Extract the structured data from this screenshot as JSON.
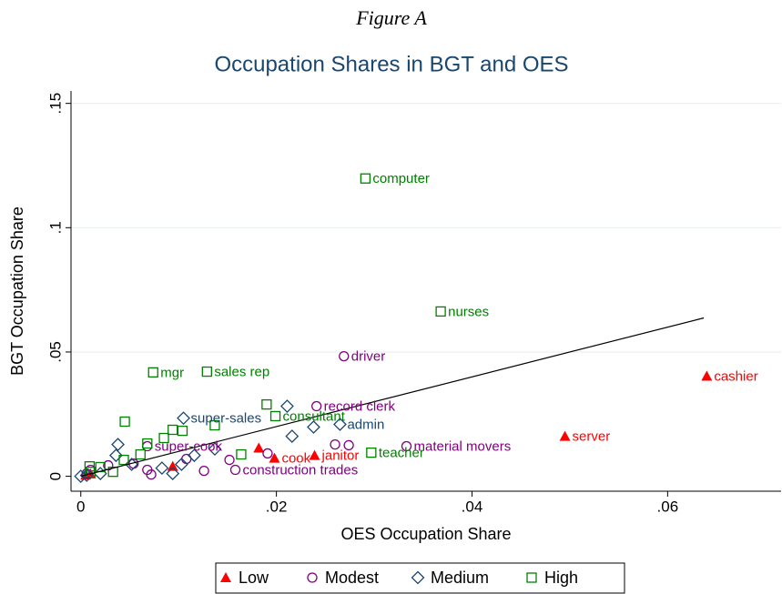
{
  "chart_data": {
    "type": "scatter",
    "figure_label": "Figure A",
    "title": "Occupation Shares in BGT and OES",
    "x_label": "OES Occupation Share",
    "y_label": "BGT Occupation Share",
    "xlim": [
      -0.001,
      0.0716
    ],
    "ylim": [
      -0.006,
      0.155
    ],
    "xticks": [
      0,
      {
        "value": 0.02,
        "label": ".02"
      },
      {
        "value": 0.04,
        "label": ".04"
      },
      {
        "value": 0.06,
        "label": ".06"
      }
    ],
    "yticks": [
      0,
      {
        "value": 0.05,
        "label": ".05"
      },
      {
        "value": 0.1,
        "label": ".1"
      },
      {
        "value": 0.15,
        "label": ".15"
      }
    ],
    "grid": true,
    "legend_position": "bottom",
    "fit_line": {
      "x": [
        0,
        0.0637
      ],
      "y": [
        0,
        0.0637
      ]
    },
    "series": [
      {
        "name": "Low",
        "color": "#ff0000",
        "marker": "triangle",
        "x": [
          0.064,
          0.0495,
          0.0198,
          0.0239,
          0.0182,
          0.0094,
          0.001,
          0.0005
        ],
        "values": [
          0.0403,
          0.0161,
          0.0073,
          0.0084,
          0.0114,
          0.004,
          0.001,
          0.0005
        ],
        "labels": [
          "cashier",
          "server",
          "cook",
          "janitor",
          null,
          null,
          null,
          null
        ]
      },
      {
        "name": "Modest",
        "color": "#800080",
        "marker": "circle",
        "x": [
          0.0269,
          0.0241,
          0.0333,
          0.0068,
          0.0158,
          0.026,
          0.0274,
          0.0191,
          0.0152,
          0.0126,
          0.0108,
          0.0054,
          0.0068,
          0.0072,
          0.0028,
          0.001,
          0.0006
        ],
        "values": [
          0.0483,
          0.0282,
          0.0121,
          0.0121,
          0.0026,
          0.0128,
          0.0125,
          0.0092,
          0.0066,
          0.0022,
          0.007,
          0.0051,
          0.0026,
          0.0007,
          0.0044,
          0.0026,
          0.0011
        ],
        "labels": [
          "driver",
          "record clerk",
          "material movers",
          "super-cook",
          "construction trades",
          null,
          null,
          null,
          null,
          null,
          null,
          null,
          null,
          null,
          null,
          null,
          null
        ]
      },
      {
        "name": "Medium",
        "color": "#1a476f",
        "marker": "diamond",
        "x": [
          0.0105,
          0.0265,
          0.0211,
          0.0238,
          0.0216,
          0.0038,
          0.0036,
          0.0137,
          0.0116,
          0.0103,
          0.0083,
          0.0094,
          0.0052,
          0.002,
          0.0006,
          0.0
        ],
        "values": [
          0.0234,
          0.0209,
          0.0282,
          0.0198,
          0.0161,
          0.0128,
          0.0084,
          0.011,
          0.0084,
          0.0048,
          0.0033,
          0.0011,
          0.0048,
          0.0011,
          0.0004,
          0.0
        ],
        "labels": [
          "super-sales",
          "admin",
          null,
          null,
          null,
          null,
          null,
          null,
          null,
          null,
          null,
          null,
          null,
          null,
          null,
          null
        ]
      },
      {
        "name": "High",
        "color": "#008000",
        "marker": "square",
        "x": [
          0.0291,
          0.0368,
          0.0074,
          0.0129,
          0.0199,
          0.0297,
          0.019,
          0.0045,
          0.0137,
          0.0094,
          0.0104,
          0.0085,
          0.0068,
          0.0061,
          0.0164,
          0.0044,
          0.0009,
          0.002,
          0.0033,
          0.001
        ],
        "values": [
          0.1198,
          0.0663,
          0.0418,
          0.0421,
          0.0242,
          0.0095,
          0.0289,
          0.022,
          0.0205,
          0.0187,
          0.0183,
          0.0154,
          0.0132,
          0.0088,
          0.0088,
          0.0066,
          0.004,
          0.0037,
          0.0018,
          0.0018
        ],
        "labels": [
          "computer",
          "nurses",
          "mgr",
          "sales rep",
          "consultant",
          "teacher",
          null,
          null,
          null,
          null,
          null,
          null,
          null,
          null,
          null,
          null,
          null,
          null,
          null,
          null
        ]
      }
    ]
  }
}
